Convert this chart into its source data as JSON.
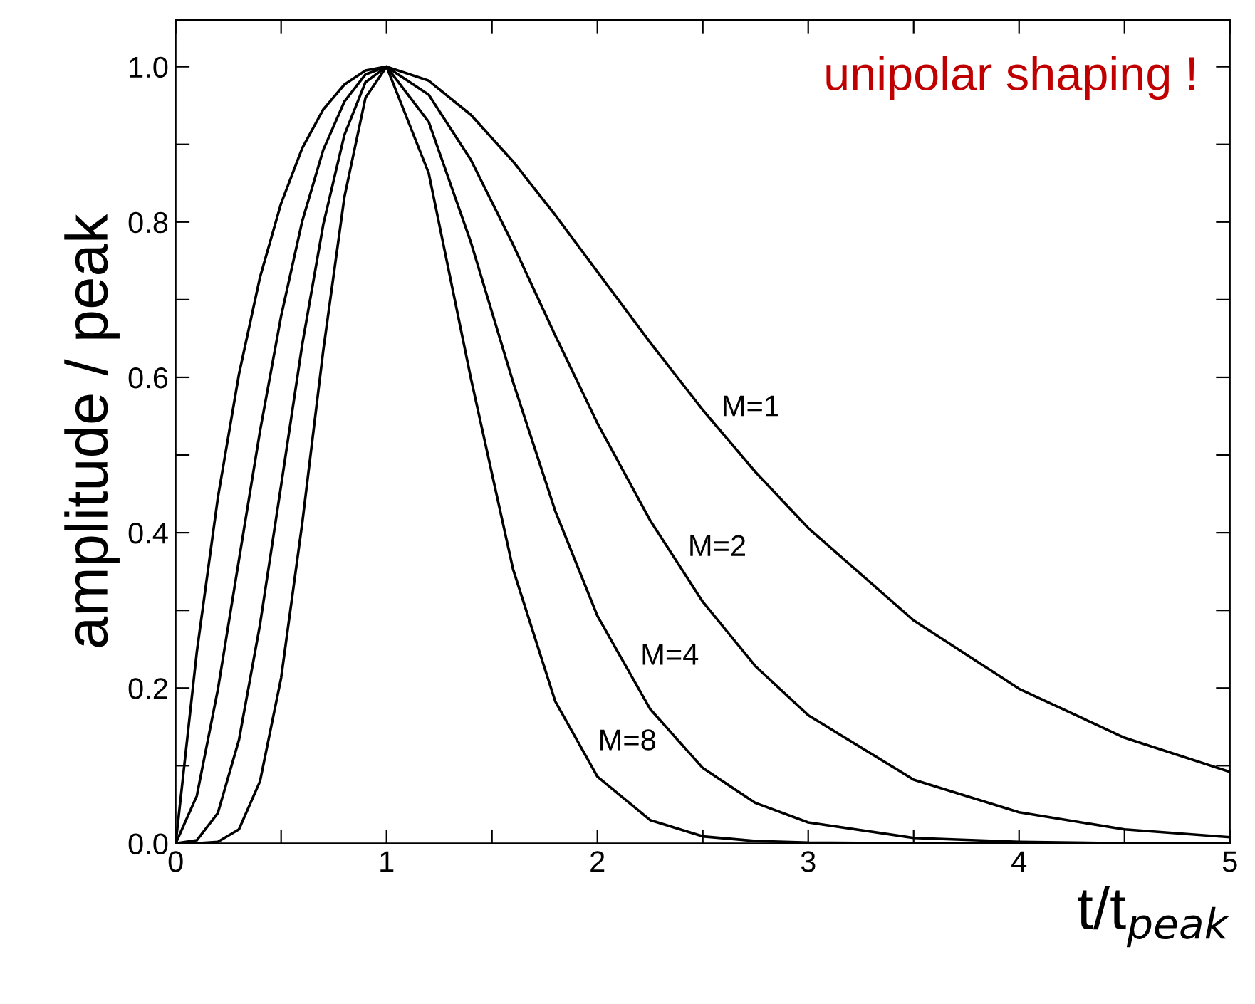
{
  "chart_data": {
    "type": "line",
    "xlabel": "t/t$_{peak}$",
    "ylabel": "amplitude / peak",
    "x": [
      0,
      0.1,
      0.2,
      0.3,
      0.4,
      0.5,
      0.6,
      0.7,
      0.8,
      0.9,
      1,
      1.2,
      1.4,
      1.6,
      1.8,
      2,
      2.25,
      2.5,
      2.75,
      3,
      3.5,
      4,
      4.5,
      5
    ],
    "series": [
      {
        "name": "M=1",
        "color": "#000000",
        "values": [
          0,
          0.246,
          0.445,
          0.604,
          0.729,
          0.824,
          0.895,
          0.945,
          0.977,
          0.995,
          1,
          0.982,
          0.938,
          0.878,
          0.809,
          0.736,
          0.645,
          0.558,
          0.478,
          0.406,
          0.287,
          0.199,
          0.136,
          0.092
        ]
      },
      {
        "name": "M=2",
        "color": "#000000",
        "values": [
          0,
          0.061,
          0.198,
          0.365,
          0.531,
          0.679,
          0.801,
          0.893,
          0.955,
          0.99,
          1,
          0.964,
          0.88,
          0.771,
          0.654,
          0.541,
          0.416,
          0.311,
          0.228,
          0.165,
          0.082,
          0.04,
          0.018,
          0.008
        ]
      },
      {
        "name": "M=4",
        "color": "#000000",
        "values": [
          0,
          0.004,
          0.039,
          0.133,
          0.282,
          0.461,
          0.642,
          0.797,
          0.912,
          0.98,
          1,
          0.929,
          0.774,
          0.594,
          0.428,
          0.293,
          0.173,
          0.097,
          0.052,
          0.027,
          0.007,
          0.002,
          0,
          0
        ]
      },
      {
        "name": "M=8",
        "color": "#000000",
        "values": [
          0,
          0,
          0.002,
          0.018,
          0.08,
          0.213,
          0.412,
          0.635,
          0.832,
          0.96,
          1,
          0.863,
          0.599,
          0.353,
          0.183,
          0.086,
          0.03,
          0.009,
          0.003,
          0.001,
          0,
          0,
          0,
          0
        ]
      }
    ],
    "annotations": [
      "unipolar shaping !"
    ],
    "xlim": [
      0,
      5
    ],
    "ylim": [
      0,
      1.06
    ],
    "xticks": [
      0,
      {
        "value": 0.5,
        "label": null
      },
      1,
      {
        "value": 1.5,
        "label": null
      },
      2,
      {
        "value": 2.5,
        "label": null
      },
      3,
      {
        "value": 3.5,
        "label": null
      },
      4,
      {
        "value": 4.5,
        "label": null
      },
      5
    ],
    "yticks": [
      {
        "value": 0,
        "label": "0.0"
      },
      {
        "value": 0.1,
        "label": null
      },
      {
        "value": 0.2,
        "label": "0.2"
      },
      {
        "value": 0.3,
        "label": null
      },
      {
        "value": 0.4,
        "label": "0.4"
      },
      {
        "value": 0.5,
        "label": null
      },
      {
        "value": 0.6,
        "label": "0.6"
      },
      {
        "value": 0.7,
        "label": null
      },
      {
        "value": 0.8,
        "label": "0.8"
      },
      {
        "value": 0.9,
        "label": null
      },
      {
        "value": 1.0,
        "label": "1.0"
      }
    ],
    "grid": false,
    "legend": false
  }
}
